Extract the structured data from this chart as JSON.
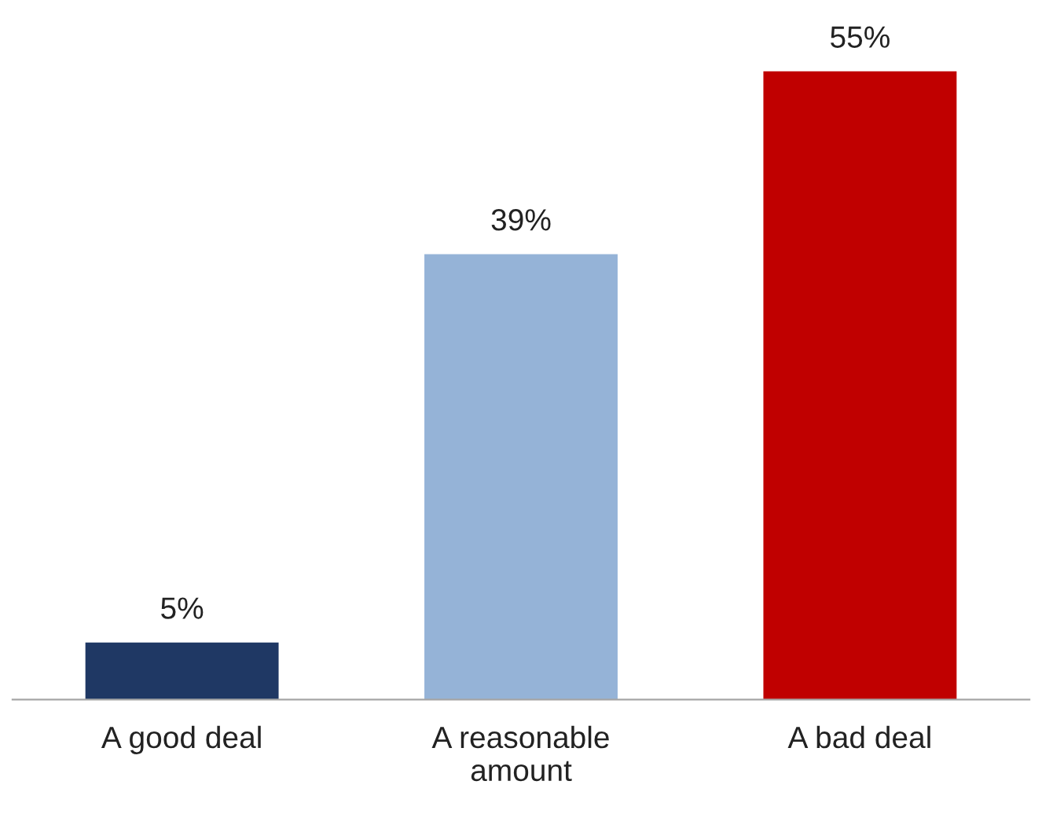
{
  "chart_data": {
    "type": "bar",
    "categories": [
      "A good deal",
      "A reasonable\namount",
      "A bad deal"
    ],
    "values": [
      5,
      39,
      55
    ],
    "colors": [
      "#1f3864",
      "#95b3d7",
      "#c00000"
    ],
    "value_labels": [
      "5%",
      "39%",
      "55%"
    ],
    "grid": false,
    "legend": false
  }
}
